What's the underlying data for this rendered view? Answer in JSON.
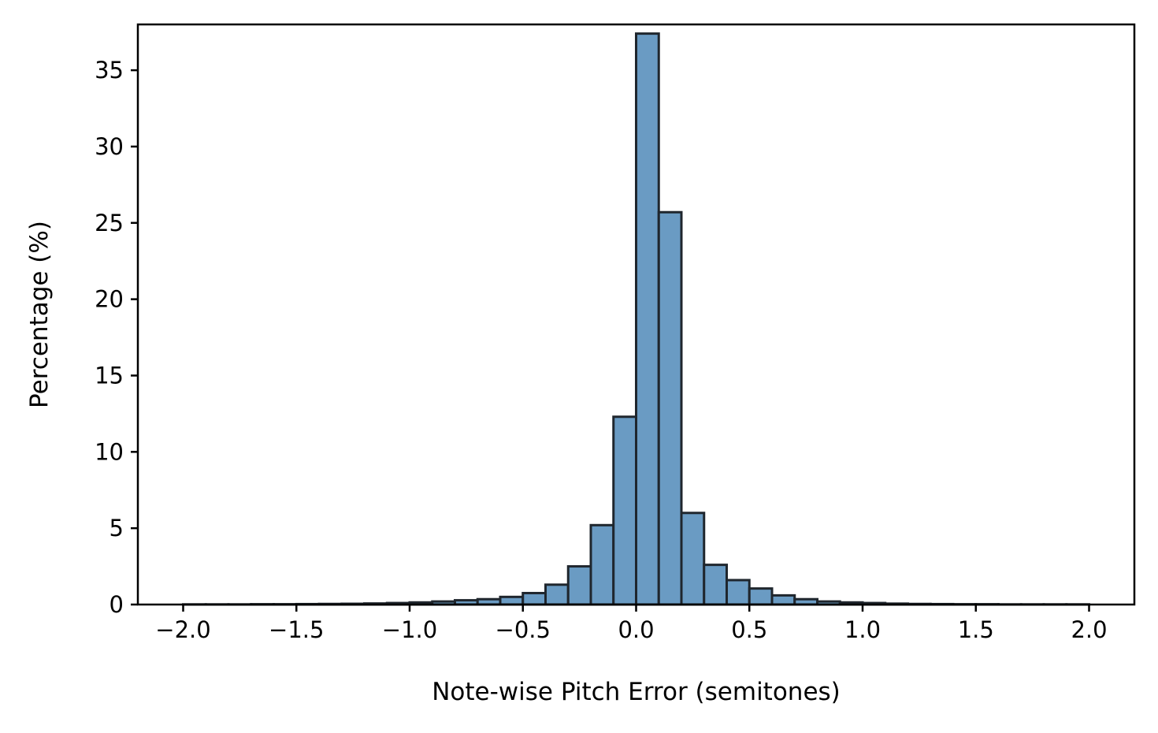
{
  "chart_data": {
    "type": "bar",
    "title": "",
    "xlabel": "Note-wise Pitch Error (semitones)",
    "ylabel": "Percentage (%)",
    "xlim": [
      -2.2,
      2.2
    ],
    "ylim": [
      0,
      38
    ],
    "xticks": [
      -2.0,
      -1.5,
      -1.0,
      -0.5,
      0.0,
      0.5,
      1.0,
      1.5,
      2.0
    ],
    "xtick_labels": [
      "−2.0",
      "−1.5",
      "−1.0",
      "−0.5",
      "0.0",
      "0.5",
      "1.0",
      "1.5",
      "2.0"
    ],
    "yticks": [
      0,
      5,
      10,
      15,
      20,
      25,
      30,
      35
    ],
    "ytick_labels": [
      "0",
      "5",
      "10",
      "15",
      "20",
      "25",
      "30",
      "35"
    ],
    "grid": false,
    "bar_color": "#6a9bc3",
    "edge_color": "#1f262d",
    "bin_width": 0.1,
    "bin_starts": [
      -2.0,
      -1.9,
      -1.8,
      -1.7,
      -1.6,
      -1.5,
      -1.4,
      -1.3,
      -1.2,
      -1.1,
      -1.0,
      -0.9,
      -0.8,
      -0.7,
      -0.6,
      -0.5,
      -0.4,
      -0.3,
      -0.2,
      -0.1,
      0.0,
      0.1,
      0.2,
      0.3,
      0.4,
      0.5,
      0.6,
      0.7,
      0.8,
      0.9,
      1.0,
      1.1,
      1.2,
      1.3,
      1.4,
      1.5,
      1.6,
      1.7,
      1.8,
      1.9
    ],
    "values": [
      0.01,
      0.01,
      0.01,
      0.02,
      0.02,
      0.03,
      0.04,
      0.05,
      0.07,
      0.1,
      0.14,
      0.2,
      0.28,
      0.35,
      0.5,
      0.75,
      1.3,
      2.5,
      5.2,
      12.3,
      37.4,
      25.7,
      6.0,
      2.6,
      1.6,
      1.05,
      0.6,
      0.35,
      0.2,
      0.14,
      0.1,
      0.06,
      0.04,
      0.03,
      0.02,
      0.02,
      0.01,
      0.01,
      0.01,
      0.01
    ]
  }
}
